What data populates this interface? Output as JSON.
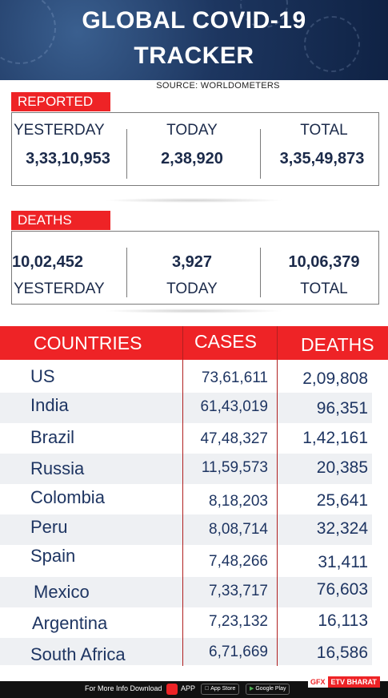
{
  "header": {
    "title_line1": "GLOBAL COVID-19",
    "title_line2": "TRACKER",
    "source": "SOURCE: WORLDOMETERS"
  },
  "reported": {
    "tag": "REPORTED +",
    "yesterday_label": "YESTERDAY",
    "today_label": "TODAY",
    "total_label": "TOTAL",
    "yesterday": "3,33,10,953",
    "today": "2,38,920",
    "total": "3,35,49,873"
  },
  "deaths": {
    "tag": "DEATHS",
    "yesterday_label": "YESTERDAY",
    "today_label": "TODAY",
    "total_label": "TOTAL",
    "yesterday": "10,02,452",
    "today": "3,927",
    "total": "10,06,379"
  },
  "table": {
    "headers": {
      "countries": "COUNTRIES",
      "cases": "CASES",
      "deaths": "DEATHS"
    },
    "rows": [
      {
        "country": "US",
        "cases": "73,61,611",
        "deaths": "2,09,808"
      },
      {
        "country": "India",
        "cases": "61,43,019",
        "deaths": "96,351"
      },
      {
        "country": "Brazil",
        "cases": "47,48,327",
        "deaths": "1,42,161"
      },
      {
        "country": "Russia",
        "cases": "11,59,573",
        "deaths": "20,385"
      },
      {
        "country": "Colombia",
        "cases": "8,18,203",
        "deaths": "25,641"
      },
      {
        "country": "Peru",
        "cases": "8,08,714",
        "deaths": "32,324"
      },
      {
        "country": "Spain",
        "cases": "7,48,266",
        "deaths": "31,411"
      },
      {
        "country": "Mexico",
        "cases": "7,33,717",
        "deaths": "76,603"
      },
      {
        "country": "Argentina",
        "cases": "7,23,132",
        "deaths": "16,113"
      },
      {
        "country": "South Africa",
        "cases": "6,71,669",
        "deaths": "16,586"
      }
    ]
  },
  "footer": {
    "info": "For More Info Download",
    "app": "APP",
    "app_store": "App Store",
    "google_play": "Google Play",
    "gfx": "GFX",
    "brand": "ETV BHARAT"
  }
}
